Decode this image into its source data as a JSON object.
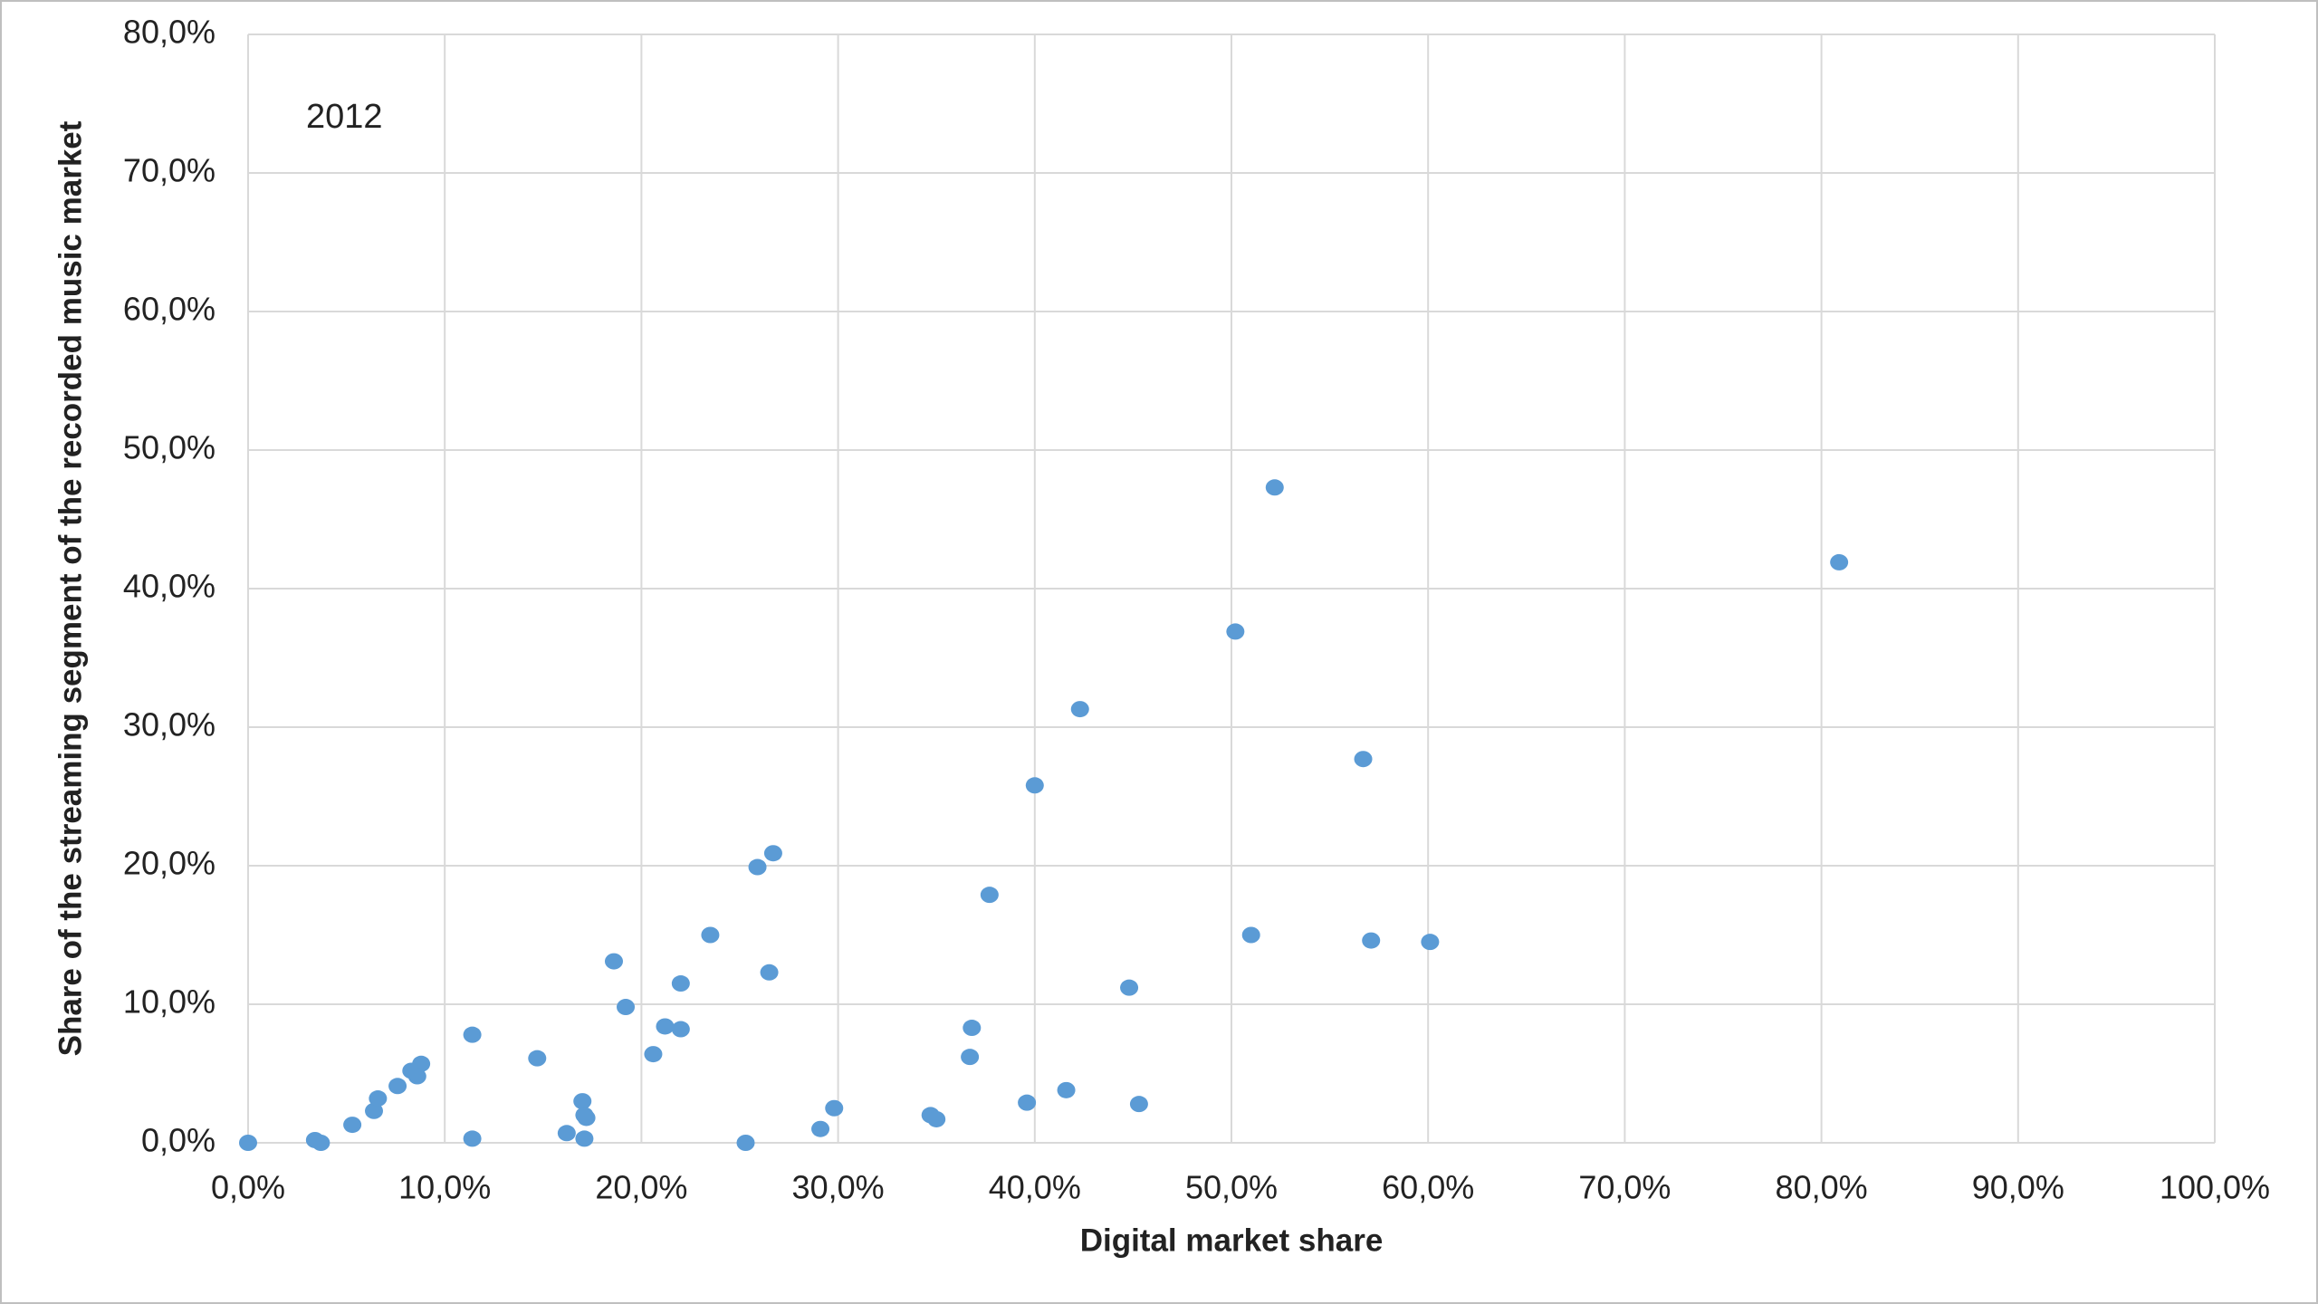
{
  "chart_data": {
    "type": "scatter",
    "annotation": "2012",
    "x_label": "Digital market share",
    "y_label": "Share of the streaming segment of the recorded music market",
    "color": "#5b9bd5",
    "grid": true,
    "xlim": [
      0,
      100
    ],
    "ylim": [
      0,
      80
    ],
    "xticks": [
      {
        "value": 0,
        "label": "0,0%"
      },
      {
        "value": 10,
        "label": "10,0%"
      },
      {
        "value": 20,
        "label": "20,0%"
      },
      {
        "value": 30,
        "label": "30,0%"
      },
      {
        "value": 40,
        "label": "40,0%"
      },
      {
        "value": 50,
        "label": "50,0%"
      },
      {
        "value": 60,
        "label": "60,0%"
      },
      {
        "value": 70,
        "label": "70,0%"
      },
      {
        "value": 80,
        "label": "80,0%"
      },
      {
        "value": 90,
        "label": "90,0%"
      },
      {
        "value": 100,
        "label": "100,0%"
      }
    ],
    "yticks": [
      {
        "value": 0,
        "label": "0,0%"
      },
      {
        "value": 10,
        "label": "10,0%"
      },
      {
        "value": 20,
        "label": "20,0%"
      },
      {
        "value": 30,
        "label": "30,0%"
      },
      {
        "value": 40,
        "label": "40,0%"
      },
      {
        "value": 50,
        "label": "50,0%"
      },
      {
        "value": 60,
        "label": "60,0%"
      },
      {
        "value": 70,
        "label": "70,0%"
      },
      {
        "value": 80,
        "label": "80,0%"
      }
    ],
    "x": [
      0,
      3.4,
      3.7,
      5.3,
      6.4,
      6.6,
      7.6,
      8.3,
      8.8,
      8.6,
      11.4,
      11.4,
      14.7,
      16.2,
      17.1,
      17.0,
      17.1,
      17.2,
      18.6,
      19.2,
      20.6,
      21.2,
      22.0,
      22.0,
      23.5,
      25.3,
      25.9,
      26.7,
      26.5,
      29.1,
      29.8,
      34.7,
      35.0,
      36.8,
      36.7,
      37.7,
      39.6,
      40.0,
      41.6,
      42.3,
      44.8,
      45.3,
      50.2,
      51.0,
      52.2,
      56.7,
      57.1,
      60.1,
      80.9
    ],
    "values": [
      0,
      0.2,
      0.0,
      1.3,
      2.3,
      3.2,
      4.1,
      5.2,
      5.7,
      4.8,
      7.8,
      0.3,
      6.1,
      0.7,
      0.3,
      3.0,
      2.0,
      1.8,
      13.1,
      9.8,
      6.4,
      8.4,
      11.5,
      8.2,
      15.0,
      0.0,
      19.9,
      20.9,
      12.3,
      1.0,
      2.5,
      2.0,
      1.7,
      8.3,
      6.2,
      17.9,
      2.9,
      25.8,
      3.8,
      31.3,
      11.2,
      2.8,
      36.9,
      15.0,
      47.3,
      27.7,
      14.6,
      14.5,
      41.9
    ]
  }
}
